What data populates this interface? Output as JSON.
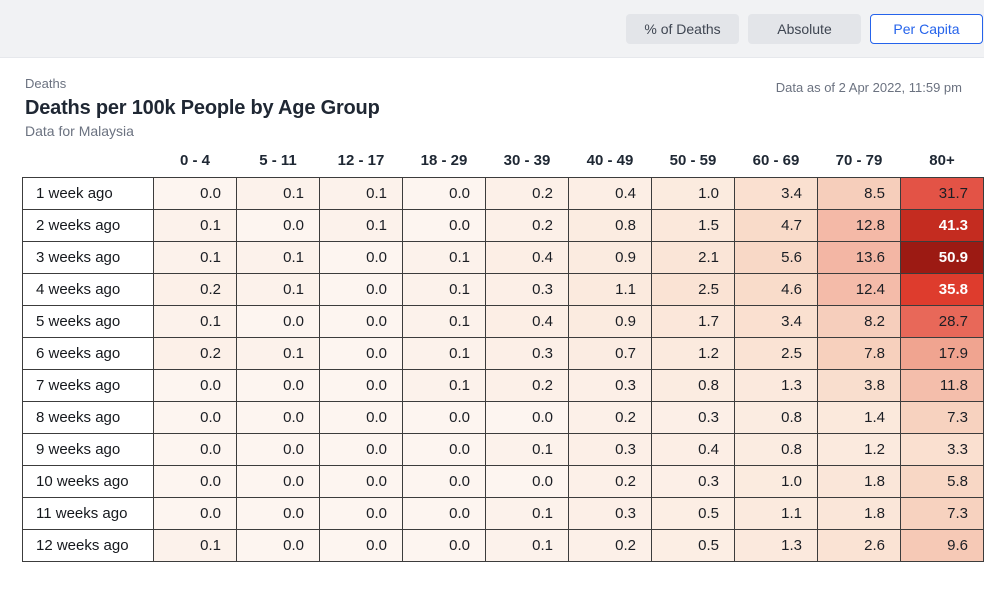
{
  "toolbar": {
    "buttons": [
      {
        "label": "% of Deaths",
        "active": false
      },
      {
        "label": "Absolute",
        "active": false
      },
      {
        "label": "Per Capita",
        "active": true
      }
    ],
    "accent_color": "#2563eb",
    "inactive_bg": "#e3e5e9",
    "strip_bg": "#f1f2f4"
  },
  "header": {
    "eyebrow": "Deaths",
    "title": "Deaths per 100k People by Age Group",
    "subtitle": "Data for Malaysia",
    "data_as_of": "Data as of 2 Apr 2022, 11:59 pm"
  },
  "chart_data": {
    "type": "heatmap",
    "title": "Deaths per 100k People by Age Group",
    "subtitle": "Data for Malaysia",
    "columns": [
      "0 - 4",
      "5 - 11",
      "12 - 17",
      "18 - 29",
      "30 - 39",
      "40 - 49",
      "50 - 59",
      "60 - 69",
      "70 - 79",
      "80+"
    ],
    "rows": [
      "1 week ago",
      "2 weeks ago",
      "3 weeks ago",
      "4 weeks ago",
      "5 weeks ago",
      "6 weeks ago",
      "7 weeks ago",
      "8 weeks ago",
      "9 weeks ago",
      "10 weeks ago",
      "11 weeks ago",
      "12 weeks ago"
    ],
    "values": [
      [
        0.0,
        0.1,
        0.1,
        0.0,
        0.2,
        0.4,
        1.0,
        3.4,
        8.5,
        31.7
      ],
      [
        0.1,
        0.0,
        0.1,
        0.0,
        0.2,
        0.8,
        1.5,
        4.7,
        12.8,
        41.3
      ],
      [
        0.1,
        0.1,
        0.0,
        0.1,
        0.4,
        0.9,
        2.1,
        5.6,
        13.6,
        50.9
      ],
      [
        0.2,
        0.1,
        0.0,
        0.1,
        0.3,
        1.1,
        2.5,
        4.6,
        12.4,
        35.8
      ],
      [
        0.1,
        0.0,
        0.0,
        0.1,
        0.4,
        0.9,
        1.7,
        3.4,
        8.2,
        28.7
      ],
      [
        0.2,
        0.1,
        0.0,
        0.1,
        0.3,
        0.7,
        1.2,
        2.5,
        7.8,
        17.9
      ],
      [
        0.0,
        0.0,
        0.0,
        0.1,
        0.2,
        0.3,
        0.8,
        1.3,
        3.8,
        11.8
      ],
      [
        0.0,
        0.0,
        0.0,
        0.0,
        0.0,
        0.2,
        0.3,
        0.8,
        1.4,
        7.3
      ],
      [
        0.0,
        0.0,
        0.0,
        0.0,
        0.1,
        0.3,
        0.4,
        0.8,
        1.2,
        3.3
      ],
      [
        0.0,
        0.0,
        0.0,
        0.0,
        0.0,
        0.2,
        0.3,
        1.0,
        1.8,
        5.8
      ],
      [
        0.0,
        0.0,
        0.0,
        0.0,
        0.1,
        0.3,
        0.5,
        1.1,
        1.8,
        7.3
      ],
      [
        0.1,
        0.0,
        0.0,
        0.0,
        0.1,
        0.2,
        0.5,
        1.3,
        2.6,
        9.6
      ]
    ],
    "value_decimals": 1,
    "value_max": 50.9,
    "color_scale": {
      "mode": "sqrt",
      "white_text_threshold": 0.81,
      "stops": [
        [
          0.0,
          "#fdf5f0"
        ],
        [
          0.15,
          "#fbeade"
        ],
        [
          0.3,
          "#f9dcca"
        ],
        [
          0.42,
          "#f6ccb9"
        ],
        [
          0.52,
          "#f3b5a3"
        ],
        [
          0.6,
          "#f0a28e"
        ],
        [
          0.68,
          "#ec8472"
        ],
        [
          0.76,
          "#e76456"
        ],
        [
          0.8,
          "#e24d40"
        ],
        [
          0.85,
          "#dd3728"
        ],
        [
          0.91,
          "#c02a1e"
        ],
        [
          1.0,
          "#9c1a13"
        ]
      ]
    },
    "legend_position": "none",
    "grid": true
  }
}
